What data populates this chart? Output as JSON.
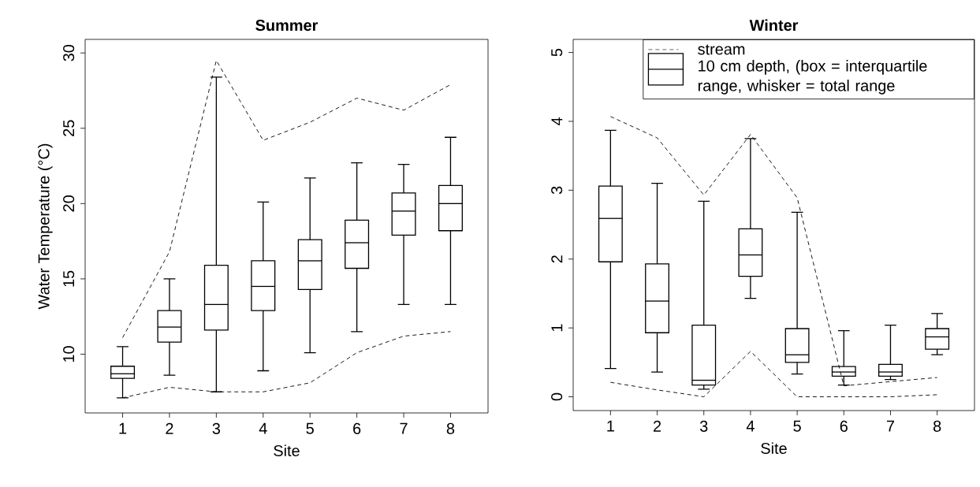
{
  "chart_data": [
    {
      "type": "box",
      "title": "Summer",
      "xlabel": "Site",
      "ylabel": "Water Temperature (°C)",
      "categories": [
        "1",
        "2",
        "3",
        "4",
        "5",
        "6",
        "7",
        "8"
      ],
      "ylim": [
        6.1,
        30.9
      ],
      "yticks": [
        10,
        15,
        20,
        25,
        30
      ],
      "legend": false,
      "series": [
        {
          "color": "#000000",
          "boxes": [
            {
              "low": 7.1,
              "q1": 8.4,
              "median": 8.7,
              "q3": 9.2,
              "high": 10.5
            },
            {
              "low": 8.6,
              "q1": 10.8,
              "median": 11.8,
              "q3": 12.9,
              "high": 15.0
            },
            {
              "low": 7.5,
              "q1": 11.6,
              "median": 13.3,
              "q3": 15.9,
              "high": 28.4
            },
            {
              "low": 8.9,
              "q1": 12.9,
              "median": 14.5,
              "q3": 16.2,
              "high": 20.1
            },
            {
              "low": 10.1,
              "q1": 14.3,
              "median": 16.2,
              "q3": 17.6,
              "high": 21.7
            },
            {
              "low": 11.5,
              "q1": 15.7,
              "median": 17.4,
              "q3": 18.9,
              "high": 22.7
            },
            {
              "low": 13.3,
              "q1": 17.9,
              "median": 19.5,
              "q3": 20.7,
              "high": 22.6
            },
            {
              "low": 13.3,
              "q1": 18.2,
              "median": 20.0,
              "q3": 21.2,
              "high": 24.4
            }
          ]
        },
        {
          "type": "line",
          "color": "#000000",
          "line_style": "dashed",
          "values": [
            11.1,
            16.8,
            29.5,
            24.2,
            25.4,
            27.0,
            26.2,
            27.9
          ]
        },
        {
          "type": "line",
          "color": "#000000",
          "line_style": "dashed",
          "values": [
            7.1,
            7.8,
            7.5,
            7.5,
            8.1,
            10.1,
            11.2,
            11.5
          ]
        }
      ]
    },
    {
      "type": "box",
      "title": "Winter",
      "xlabel": "Site",
      "categories": [
        "1",
        "2",
        "3",
        "4",
        "5",
        "6",
        "7",
        "8"
      ],
      "ylim": [
        -0.2,
        5.19
      ],
      "yticks": [
        0,
        1,
        2,
        3,
        4,
        5
      ],
      "legend": "top right",
      "series": [
        {
          "type": "line",
          "name": "stream",
          "color": "#000000",
          "line_style": "dashed",
          "values": [
            4.07,
            3.76,
            2.93,
            3.81,
            2.89,
            0.16,
            0.22,
            0.28
          ]
        },
        {
          "name": "10 cm depth, (box = interquartile range, whisker = total range",
          "color": "#000000",
          "boxes": [
            {
              "low": 0.41,
              "q1": 1.96,
              "median": 2.59,
              "q3": 3.06,
              "high": 3.87
            },
            {
              "low": 0.36,
              "q1": 0.93,
              "median": 1.39,
              "q3": 1.93,
              "high": 3.1
            },
            {
              "low": 0.11,
              "q1": 0.17,
              "median": 0.24,
              "q3": 1.04,
              "high": 2.84
            },
            {
              "low": 1.43,
              "q1": 1.75,
              "median": 2.06,
              "q3": 2.44,
              "high": 3.75
            },
            {
              "low": 0.33,
              "q1": 0.5,
              "median": 0.61,
              "q3": 0.99,
              "high": 2.68
            },
            {
              "low": 0.17,
              "q1": 0.3,
              "median": 0.36,
              "q3": 0.44,
              "high": 0.96
            },
            {
              "low": 0.25,
              "q1": 0.3,
              "median": 0.36,
              "q3": 0.47,
              "high": 1.04
            },
            {
              "low": 0.61,
              "q1": 0.69,
              "median": 0.87,
              "q3": 0.99,
              "high": 1.21
            }
          ]
        },
        {
          "type": "line",
          "color": "#000000",
          "line_style": "dashed",
          "values": [
            0.21,
            0.1,
            0.0,
            0.66,
            0.0,
            0.0,
            0.0,
            0.03
          ]
        }
      ]
    }
  ]
}
